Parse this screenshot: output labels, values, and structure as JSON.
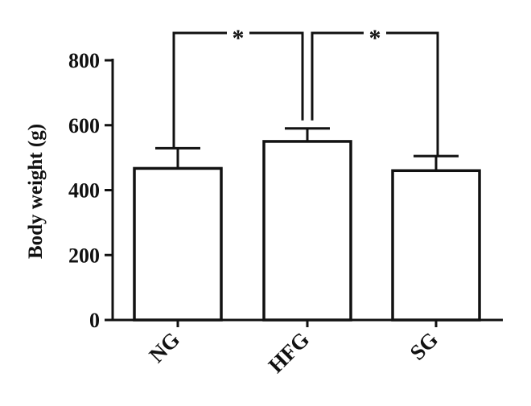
{
  "chart_data": {
    "type": "bar",
    "title": "",
    "xlabel": "",
    "ylabel": "Body weight (g)",
    "ylim": [
      0,
      800
    ],
    "yticks": [
      0,
      200,
      400,
      600,
      800
    ],
    "categories": [
      "NG",
      "HFG",
      "SG"
    ],
    "values": [
      467,
      550,
      460
    ],
    "error": [
      62,
      40,
      45
    ],
    "grid": false,
    "significance": [
      {
        "from": "NG",
        "to": "HFG",
        "label": "*"
      },
      {
        "from": "HFG",
        "to": "SG",
        "label": "*"
      }
    ]
  }
}
